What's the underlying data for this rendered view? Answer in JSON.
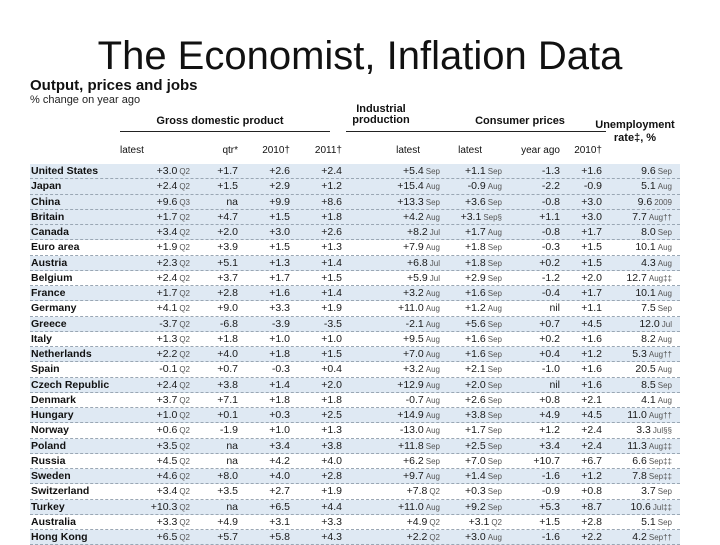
{
  "slide": {
    "title": "The Economist, Inflation Data"
  },
  "table": {
    "title": "Output, prices and jobs",
    "subtitle": "% change on year ago",
    "groups": {
      "gdp": "Gross domestic product",
      "industrial_1": "Industrial",
      "industrial_2": "production",
      "cpi": "Consumer prices",
      "unemp_1": "Unemployment",
      "unemp_2": "rate‡, %"
    },
    "columns": {
      "gdp_latest": "latest",
      "gdp_qtr": "qtr*",
      "gdp_2010": "2010†",
      "gdp_2011": "2011†",
      "ip_latest": "latest",
      "cpi_latest": "latest",
      "cpi_year_ago": "year ago",
      "cpi_2010": "2010†"
    },
    "rows": [
      {
        "country": "United States",
        "gdp_latest": "+3.0",
        "gdp_latest_p": "Q2",
        "gdp_qtr": "+1.7",
        "gdp_2010": "+2.6",
        "gdp_2011": "+2.4",
        "ip": "+5.4",
        "ip_p": "Sep",
        "cpi": "+1.1",
        "cpi_p": "Sep",
        "cpi_ya": "-1.3",
        "cpi_2010": "+1.6",
        "unemp": "9.6",
        "unemp_p": "Sep"
      },
      {
        "country": "Japan",
        "gdp_latest": "+2.4",
        "gdp_latest_p": "Q2",
        "gdp_qtr": "+1.5",
        "gdp_2010": "+2.9",
        "gdp_2011": "+1.2",
        "ip": "+15.4",
        "ip_p": "Aug",
        "cpi": "-0.9",
        "cpi_p": "Aug",
        "cpi_ya": "-2.2",
        "cpi_2010": "-0.9",
        "unemp": "5.1",
        "unemp_p": "Aug"
      },
      {
        "country": "China",
        "gdp_latest": "+9.6",
        "gdp_latest_p": "Q3",
        "gdp_qtr": "na",
        "gdp_2010": "+9.9",
        "gdp_2011": "+8.6",
        "ip": "+13.3",
        "ip_p": "Sep",
        "cpi": "+3.6",
        "cpi_p": "Sep",
        "cpi_ya": "-0.8",
        "cpi_2010": "+3.0",
        "unemp": "9.6",
        "unemp_p": "2009"
      },
      {
        "country": "Britain",
        "gdp_latest": "+1.7",
        "gdp_latest_p": "Q2",
        "gdp_qtr": "+4.7",
        "gdp_2010": "+1.5",
        "gdp_2011": "+1.8",
        "ip": "+4.2",
        "ip_p": "Aug",
        "cpi": "+3.1",
        "cpi_p": "Sep§",
        "cpi_ya": "+1.1",
        "cpi_2010": "+3.0",
        "unemp": "7.7",
        "unemp_p": "Aug††"
      },
      {
        "country": "Canada",
        "gdp_latest": "+3.4",
        "gdp_latest_p": "Q2",
        "gdp_qtr": "+2.0",
        "gdp_2010": "+3.0",
        "gdp_2011": "+2.6",
        "ip": "+8.2",
        "ip_p": "Jul",
        "cpi": "+1.7",
        "cpi_p": "Aug",
        "cpi_ya": "-0.8",
        "cpi_2010": "+1.7",
        "unemp": "8.0",
        "unemp_p": "Sep"
      },
      {
        "country": "Euro area",
        "gdp_latest": "+1.9",
        "gdp_latest_p": "Q2",
        "gdp_qtr": "+3.9",
        "gdp_2010": "+1.5",
        "gdp_2011": "+1.3",
        "ip": "+7.9",
        "ip_p": "Aug",
        "cpi": "+1.8",
        "cpi_p": "Sep",
        "cpi_ya": "-0.3",
        "cpi_2010": "+1.5",
        "unemp": "10.1",
        "unemp_p": "Aug"
      },
      {
        "country": "Austria",
        "gdp_latest": "+2.3",
        "gdp_latest_p": "Q2",
        "gdp_qtr": "+5.1",
        "gdp_2010": "+1.3",
        "gdp_2011": "+1.4",
        "ip": "+6.8",
        "ip_p": "Jul",
        "cpi": "+1.8",
        "cpi_p": "Sep",
        "cpi_ya": "+0.2",
        "cpi_2010": "+1.5",
        "unemp": "4.3",
        "unemp_p": "Aug"
      },
      {
        "country": "Belgium",
        "gdp_latest": "+2.4",
        "gdp_latest_p": "Q2",
        "gdp_qtr": "+3.7",
        "gdp_2010": "+1.7",
        "gdp_2011": "+1.5",
        "ip": "+5.9",
        "ip_p": "Jul",
        "cpi": "+2.9",
        "cpi_p": "Sep",
        "cpi_ya": "-1.2",
        "cpi_2010": "+2.0",
        "unemp": "12.7",
        "unemp_p": "Aug‡‡"
      },
      {
        "country": "France",
        "gdp_latest": "+1.7",
        "gdp_latest_p": "Q2",
        "gdp_qtr": "+2.8",
        "gdp_2010": "+1.6",
        "gdp_2011": "+1.4",
        "ip": "+3.2",
        "ip_p": "Aug",
        "cpi": "+1.6",
        "cpi_p": "Sep",
        "cpi_ya": "-0.4",
        "cpi_2010": "+1.7",
        "unemp": "10.1",
        "unemp_p": "Aug"
      },
      {
        "country": "Germany",
        "gdp_latest": "+4.1",
        "gdp_latest_p": "Q2",
        "gdp_qtr": "+9.0",
        "gdp_2010": "+3.3",
        "gdp_2011": "+1.9",
        "ip": "+11.0",
        "ip_p": "Aug",
        "cpi": "+1.2",
        "cpi_p": "Aug",
        "cpi_ya": "nil",
        "cpi_2010": "+1.1",
        "unemp": "7.5",
        "unemp_p": "Sep"
      },
      {
        "country": "Greece",
        "gdp_latest": "-3.7",
        "gdp_latest_p": "Q2",
        "gdp_qtr": "-6.8",
        "gdp_2010": "-3.9",
        "gdp_2011": "-3.5",
        "ip": "-2.1",
        "ip_p": "Aug",
        "cpi": "+5.6",
        "cpi_p": "Sep",
        "cpi_ya": "+0.7",
        "cpi_2010": "+4.5",
        "unemp": "12.0",
        "unemp_p": "Jul"
      },
      {
        "country": "Italy",
        "gdp_latest": "+1.3",
        "gdp_latest_p": "Q2",
        "gdp_qtr": "+1.8",
        "gdp_2010": "+1.0",
        "gdp_2011": "+1.0",
        "ip": "+9.5",
        "ip_p": "Aug",
        "cpi": "+1.6",
        "cpi_p": "Sep",
        "cpi_ya": "+0.2",
        "cpi_2010": "+1.6",
        "unemp": "8.2",
        "unemp_p": "Aug"
      },
      {
        "country": "Netherlands",
        "gdp_latest": "+2.2",
        "gdp_latest_p": "Q2",
        "gdp_qtr": "+4.0",
        "gdp_2010": "+1.8",
        "gdp_2011": "+1.5",
        "ip": "+7.0",
        "ip_p": "Aug",
        "cpi": "+1.6",
        "cpi_p": "Sep",
        "cpi_ya": "+0.4",
        "cpi_2010": "+1.2",
        "unemp": "5.3",
        "unemp_p": "Aug††"
      },
      {
        "country": "Spain",
        "gdp_latest": "-0.1",
        "gdp_latest_p": "Q2",
        "gdp_qtr": "+0.7",
        "gdp_2010": "-0.3",
        "gdp_2011": "+0.4",
        "ip": "+3.2",
        "ip_p": "Aug",
        "cpi": "+2.1",
        "cpi_p": "Sep",
        "cpi_ya": "-1.0",
        "cpi_2010": "+1.6",
        "unemp": "20.5",
        "unemp_p": "Aug"
      },
      {
        "country": "Czech Republic",
        "gdp_latest": "+2.4",
        "gdp_latest_p": "Q2",
        "gdp_qtr": "+3.8",
        "gdp_2010": "+1.4",
        "gdp_2011": "+2.0",
        "ip": "+12.9",
        "ip_p": "Aug",
        "cpi": "+2.0",
        "cpi_p": "Sep",
        "cpi_ya": "nil",
        "cpi_2010": "+1.6",
        "unemp": "8.5",
        "unemp_p": "Sep"
      },
      {
        "country": "Denmark",
        "gdp_latest": "+3.7",
        "gdp_latest_p": "Q2",
        "gdp_qtr": "+7.1",
        "gdp_2010": "+1.8",
        "gdp_2011": "+1.8",
        "ip": "-0.7",
        "ip_p": "Aug",
        "cpi": "+2.6",
        "cpi_p": "Sep",
        "cpi_ya": "+0.8",
        "cpi_2010": "+2.1",
        "unemp": "4.1",
        "unemp_p": "Aug"
      },
      {
        "country": "Hungary",
        "gdp_latest": "+1.0",
        "gdp_latest_p": "Q2",
        "gdp_qtr": "+0.1",
        "gdp_2010": "+0.3",
        "gdp_2011": "+2.5",
        "ip": "+14.9",
        "ip_p": "Aug",
        "cpi": "+3.8",
        "cpi_p": "Sep",
        "cpi_ya": "+4.9",
        "cpi_2010": "+4.5",
        "unemp": "11.0",
        "unemp_p": "Aug††"
      },
      {
        "country": "Norway",
        "gdp_latest": "+0.6",
        "gdp_latest_p": "Q2",
        "gdp_qtr": "-1.9",
        "gdp_2010": "+1.0",
        "gdp_2011": "+1.3",
        "ip": "-13.0",
        "ip_p": "Aug",
        "cpi": "+1.7",
        "cpi_p": "Sep",
        "cpi_ya": "+1.2",
        "cpi_2010": "+2.4",
        "unemp": "3.3",
        "unemp_p": "Jul§§"
      },
      {
        "country": "Poland",
        "gdp_latest": "+3.5",
        "gdp_latest_p": "Q2",
        "gdp_qtr": "na",
        "gdp_2010": "+3.4",
        "gdp_2011": "+3.8",
        "ip": "+11.8",
        "ip_p": "Sep",
        "cpi": "+2.5",
        "cpi_p": "Sep",
        "cpi_ya": "+3.4",
        "cpi_2010": "+2.4",
        "unemp": "11.3",
        "unemp_p": "Aug‡‡"
      },
      {
        "country": "Russia",
        "gdp_latest": "+4.5",
        "gdp_latest_p": "Q2",
        "gdp_qtr": "na",
        "gdp_2010": "+4.2",
        "gdp_2011": "+4.0",
        "ip": "+6.2",
        "ip_p": "Sep",
        "cpi": "+7.0",
        "cpi_p": "Sep",
        "cpi_ya": "+10.7",
        "cpi_2010": "+6.7",
        "unemp": "6.6",
        "unemp_p": "Sep‡‡"
      },
      {
        "country": "Sweden",
        "gdp_latest": "+4.6",
        "gdp_latest_p": "Q2",
        "gdp_qtr": "+8.0",
        "gdp_2010": "+4.0",
        "gdp_2011": "+2.8",
        "ip": "+9.7",
        "ip_p": "Aug",
        "cpi": "+1.4",
        "cpi_p": "Sep",
        "cpi_ya": "-1.6",
        "cpi_2010": "+1.2",
        "unemp": "7.8",
        "unemp_p": "Sep‡‡"
      },
      {
        "country": "Switzerland",
        "gdp_latest": "+3.4",
        "gdp_latest_p": "Q2",
        "gdp_qtr": "+3.5",
        "gdp_2010": "+2.7",
        "gdp_2011": "+1.9",
        "ip": "+7.8",
        "ip_p": "Q2",
        "cpi": "+0.3",
        "cpi_p": "Sep",
        "cpi_ya": "-0.9",
        "cpi_2010": "+0.8",
        "unemp": "3.7",
        "unemp_p": "Sep"
      },
      {
        "country": "Turkey",
        "gdp_latest": "+10.3",
        "gdp_latest_p": "Q2",
        "gdp_qtr": "na",
        "gdp_2010": "+6.5",
        "gdp_2011": "+4.4",
        "ip": "+11.0",
        "ip_p": "Aug",
        "cpi": "+9.2",
        "cpi_p": "Sep",
        "cpi_ya": "+5.3",
        "cpi_2010": "+8.7",
        "unemp": "10.6",
        "unemp_p": "Jul‡‡"
      },
      {
        "country": "Australia",
        "gdp_latest": "+3.3",
        "gdp_latest_p": "Q2",
        "gdp_qtr": "+4.9",
        "gdp_2010": "+3.1",
        "gdp_2011": "+3.3",
        "ip": "+4.9",
        "ip_p": "Q2",
        "cpi": "+3.1",
        "cpi_p": "Q2",
        "cpi_ya": "+1.5",
        "cpi_2010": "+2.8",
        "unemp": "5.1",
        "unemp_p": "Sep"
      },
      {
        "country": "Hong Kong",
        "gdp_latest": "+6.5",
        "gdp_latest_p": "Q2",
        "gdp_qtr": "+5.7",
        "gdp_2010": "+5.8",
        "gdp_2011": "+4.3",
        "ip": "+2.2",
        "ip_p": "Q2",
        "cpi": "+3.0",
        "cpi_p": "Aug",
        "cpi_ya": "-1.6",
        "cpi_2010": "+2.2",
        "unemp": "4.2",
        "unemp_p": "Sep††"
      }
    ]
  }
}
